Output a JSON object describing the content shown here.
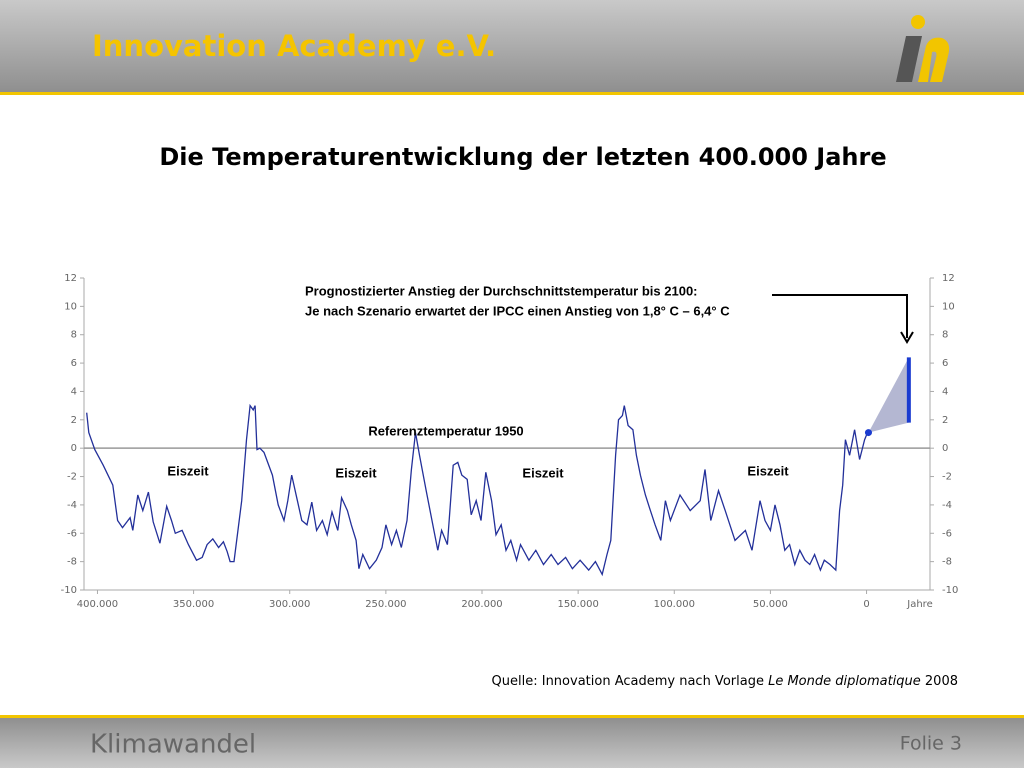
{
  "header": {
    "title": "Innovation Academy e.V."
  },
  "footer": {
    "title": "Klimawandel",
    "page": "Folie 3"
  },
  "source": {
    "prefix": "Quelle: Innovation Academy nach Vorlage ",
    "italic": "Le Monde diplomatique",
    "suffix": " 2008"
  },
  "chart_data": {
    "type": "line",
    "title": "Die Temperaturentwicklung der letzten 400.000 Jahre",
    "x_label": "Jahre",
    "color": "#23309a",
    "xlim": [
      407000,
      -33000
    ],
    "xticks": [
      {
        "value": 400000,
        "label": "400.000"
      },
      {
        "value": 350000,
        "label": "350.000"
      },
      {
        "value": 300000,
        "label": "300.000"
      },
      {
        "value": 250000,
        "label": "250.000"
      },
      {
        "value": 200000,
        "label": "200.000"
      },
      {
        "value": 150000,
        "label": "150.000"
      },
      {
        "value": 100000,
        "label": "100.000"
      },
      {
        "value": 50000,
        "label": "50.000"
      },
      0
    ],
    "ylim": [
      -10,
      12
    ],
    "yticks": [
      -10,
      -8,
      -6,
      -4,
      -2,
      0,
      2,
      4,
      6,
      8,
      10,
      12
    ],
    "y2lim": [
      -10,
      12
    ],
    "y2ticks": [
      -10,
      -8,
      -6,
      -4,
      -2,
      0,
      2,
      4,
      6,
      8,
      10,
      12
    ],
    "reference_line": {
      "value": 0,
      "label": "Referenztemperatur  1950"
    },
    "annotations": [
      "Eiszeit",
      "Eiszeit",
      "Eiszeit",
      "Eiszeit"
    ],
    "forecast": {
      "text": [
        "Prognostizierter Anstieg der Durchschnittstemperatur bis 2100:",
        "Je nach Szenario erwartet der IPCC einen Anstieg von 1,8° C – 6,4° C"
      ],
      "start_x": -1000,
      "start_y": 1.1,
      "end_x": -22000,
      "low": 1.8,
      "high": 6.4,
      "color": "#1a3bd0",
      "shade": "#b4b7d2"
    },
    "x": [
      405600,
      404500,
      401400,
      397000,
      392000,
      389500,
      387000,
      383000,
      381600,
      379000,
      376400,
      373500,
      371000,
      367500,
      364000,
      361500,
      359500,
      356000,
      352700,
      348500,
      345500,
      343000,
      340000,
      337000,
      334500,
      332500,
      331000,
      329000,
      325000,
      322500,
      320600,
      319000,
      318000,
      317000,
      315500,
      313400,
      309000,
      306000,
      303000,
      301000,
      299000,
      296000,
      293700,
      291000,
      288500,
      286000,
      283000,
      280500,
      278000,
      275000,
      273000,
      270000,
      268000,
      265500,
      264000,
      262000,
      258500,
      255000,
      252000,
      250000,
      247000,
      244500,
      242000,
      239000,
      236700,
      234600,
      232500,
      229000,
      225000,
      223000,
      221000,
      218000,
      215000,
      212600,
      210500,
      207700,
      205600,
      203000,
      200500,
      198000,
      195000,
      192700,
      190000,
      187500,
      185000,
      182000,
      180000,
      175600,
      172000,
      168000,
      164000,
      160500,
      156500,
      153000,
      149000,
      144500,
      141000,
      137500,
      135000,
      133000,
      130500,
      129000,
      127000,
      126000,
      124000,
      121500,
      119700,
      117600,
      115000,
      112400,
      110000,
      107000,
      104600,
      102000,
      97000,
      91700,
      86500,
      84000,
      81000,
      77000,
      73500,
      68400,
      63000,
      59600,
      55400,
      52800,
      50000,
      47600,
      45000,
      42500,
      40000,
      37300,
      34700,
      32000,
      29500,
      27000,
      24000,
      22000,
      19000,
      16000,
      14000,
      12400,
      11000,
      8800,
      6200,
      3600,
      1000,
      -500
    ],
    "values": [
      2.5,
      1.1,
      -0.1,
      -1.2,
      -2.6,
      -5.1,
      -5.6,
      -4.9,
      -5.8,
      -3.3,
      -4.4,
      -3.1,
      -5.2,
      -6.7,
      -4.1,
      -5.1,
      -6,
      -5.8,
      -6.8,
      -7.9,
      -7.7,
      -6.8,
      -6.4,
      -7,
      -6.6,
      -7.3,
      -8,
      -8,
      -3.7,
      0.6,
      3,
      2.7,
      3,
      -0.1,
      0,
      -0.3,
      -1.9,
      -4,
      -5.1,
      -3.7,
      -1.9,
      -3.7,
      -5.1,
      -5.4,
      -3.8,
      -5.8,
      -5.1,
      -6.1,
      -4.5,
      -5.8,
      -3.5,
      -4.4,
      -5.4,
      -6.5,
      -8.5,
      -7.5,
      -8.5,
      -7.9,
      -7,
      -5.4,
      -6.8,
      -5.8,
      -7,
      -5.1,
      -1.5,
      1.1,
      -0.5,
      -3,
      -5.8,
      -7.2,
      -5.8,
      -6.8,
      -1.2,
      -1,
      -1.9,
      -2.2,
      -4.7,
      -3.7,
      -5.1,
      -1.7,
      -3.7,
      -6.1,
      -5.4,
      -7.2,
      -6.5,
      -7.9,
      -6.8,
      -7.9,
      -7.2,
      -8.2,
      -7.5,
      -8.2,
      -7.7,
      -8.5,
      -7.9,
      -8.6,
      -8,
      -8.9,
      -7.5,
      -6.5,
      -0.5,
      2,
      2.3,
      3,
      1.6,
      1.3,
      -0.5,
      -1.9,
      -3.3,
      -4.4,
      -5.4,
      -6.5,
      -3.7,
      -5.1,
      -3.3,
      -4.4,
      -3.7,
      -1.5,
      -5.1,
      -3,
      -4.4,
      -6.5,
      -5.8,
      -7.2,
      -3.7,
      -5.1,
      -5.8,
      -4,
      -5.4,
      -7.2,
      -6.8,
      -8.2,
      -7.2,
      -7.9,
      -8.2,
      -7.5,
      -8.6,
      -7.9,
      -8.2,
      -8.6,
      -4.4,
      -2.6,
      0.6,
      -0.5,
      1.3,
      -0.8,
      0.6,
      1.1
    ]
  }
}
